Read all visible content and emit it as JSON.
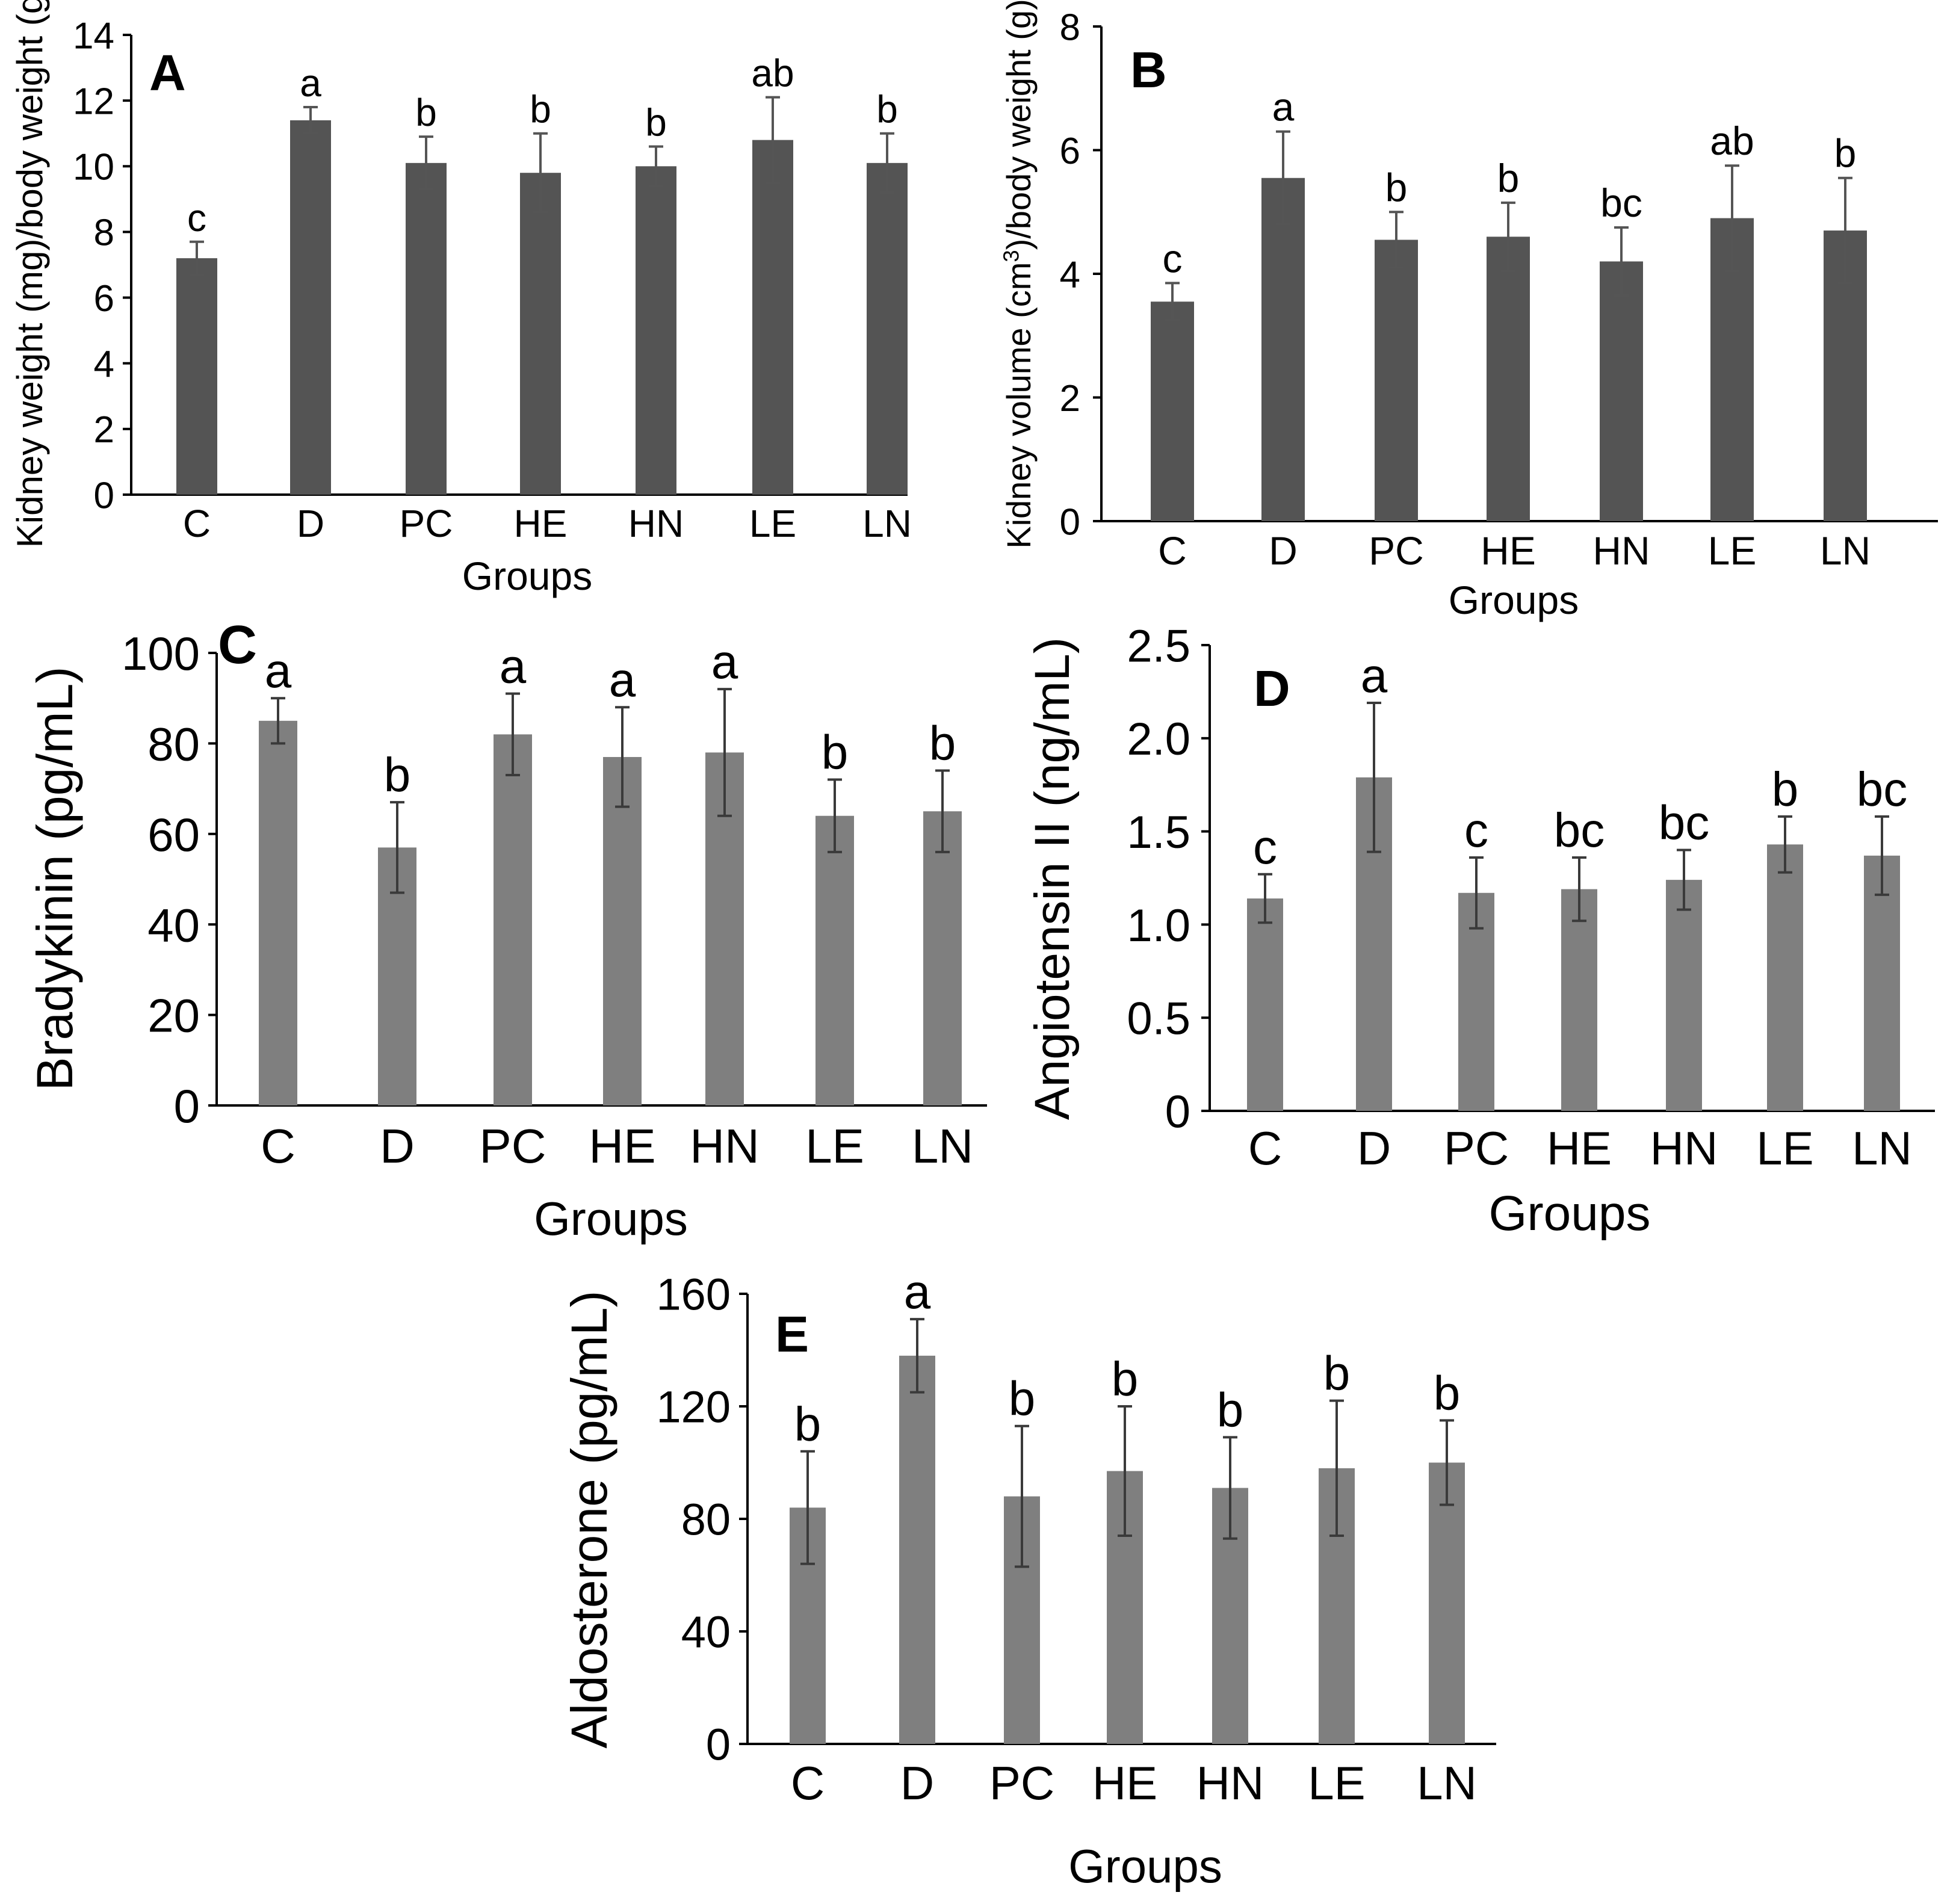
{
  "chart_data": [
    {
      "panel": "A",
      "type": "bar",
      "xlabel": "Groups",
      "ylabel": "Kidney weight (mg)/body weight (g)",
      "ylim": [
        0,
        14
      ],
      "yticks": [
        0,
        2,
        4,
        6,
        8,
        10,
        12,
        14
      ],
      "ytick_labels": [
        "0",
        "2",
        "4",
        "6",
        "8",
        "10",
        "12",
        "14"
      ],
      "categories": [
        "C",
        "D",
        "PC",
        "HE",
        "HN",
        "LE",
        "LN"
      ],
      "values": [
        7.2,
        11.4,
        10.1,
        9.8,
        10.0,
        10.8,
        10.1
      ],
      "errors": [
        0.5,
        0.4,
        0.8,
        1.2,
        0.6,
        1.3,
        0.9
      ],
      "letters": [
        "c",
        "a",
        "b",
        "b",
        "b",
        "ab",
        "b"
      ],
      "bar_color": "#545454"
    },
    {
      "panel": "B",
      "type": "bar",
      "xlabel": "Groups",
      "ylabel_parts": [
        "Kidney volume (cm",
        "3",
        ")/body weight (g)"
      ],
      "ylim": [
        0,
        8
      ],
      "yticks": [
        0,
        2,
        4,
        6,
        8
      ],
      "ytick_labels": [
        "0",
        "2",
        "4",
        "6",
        "8"
      ],
      "categories": [
        "C",
        "D",
        "PC",
        "HE",
        "HN",
        "LE",
        "LN"
      ],
      "values": [
        3.55,
        5.55,
        4.55,
        4.6,
        4.2,
        4.9,
        4.7
      ],
      "errors": [
        0.3,
        0.75,
        0.45,
        0.55,
        0.55,
        0.85,
        0.85
      ],
      "letters": [
        "c",
        "a",
        "b",
        "b",
        "bc",
        "ab",
        "b"
      ],
      "bar_color": "#545454"
    },
    {
      "panel": "C",
      "type": "bar",
      "xlabel": "Groups",
      "ylabel": "Bradykinin (pg/mL)",
      "ylim": [
        0,
        100
      ],
      "yticks": [
        0,
        20,
        40,
        60,
        80,
        100
      ],
      "ytick_labels": [
        "0",
        "20",
        "40",
        "60",
        "80",
        "100"
      ],
      "categories": [
        "C",
        "D",
        "PC",
        "HE",
        "HN",
        "LE",
        "LN"
      ],
      "values": [
        85,
        57,
        82,
        77,
        78,
        64,
        65
      ],
      "errors": [
        5,
        10,
        9,
        11,
        14,
        8,
        9
      ],
      "letters": [
        "a",
        "b",
        "a",
        "a",
        "a",
        "b",
        "b"
      ],
      "bar_color": "#7f7f7f"
    },
    {
      "panel": "D",
      "type": "bar",
      "xlabel": "Groups",
      "ylabel": "Angiotensin II (ng/mL)",
      "ylim": [
        0,
        2.5
      ],
      "yticks": [
        0,
        0.5,
        1.0,
        1.5,
        2.0,
        2.5
      ],
      "ytick_labels": [
        "0",
        "0.5",
        "1.0",
        "1.5",
        "2.0",
        "2.5"
      ],
      "categories": [
        "C",
        "D",
        "PC",
        "HE",
        "HN",
        "LE",
        "LN"
      ],
      "values": [
        1.14,
        1.79,
        1.17,
        1.19,
        1.24,
        1.43,
        1.37
      ],
      "errors": [
        0.13,
        0.4,
        0.19,
        0.17,
        0.16,
        0.15,
        0.21
      ],
      "letters": [
        "c",
        "a",
        "c",
        "bc",
        "bc",
        "b",
        "bc"
      ],
      "bar_color": "#7f7f7f"
    },
    {
      "panel": "E",
      "type": "bar",
      "xlabel": "Groups",
      "ylabel": "Aldosterone (pg/mL)",
      "ylim": [
        0,
        160
      ],
      "yticks": [
        0,
        40,
        80,
        120,
        160
      ],
      "ytick_labels": [
        "0",
        "40",
        "80",
        "120",
        "160"
      ],
      "categories": [
        "C",
        "D",
        "PC",
        "HE",
        "HN",
        "LE",
        "LN"
      ],
      "values": [
        84,
        138,
        88,
        97,
        91,
        98,
        100
      ],
      "errors": [
        20,
        13,
        25,
        23,
        18,
        24,
        15
      ],
      "letters": [
        "b",
        "a",
        "b",
        "b",
        "b",
        "b",
        "b"
      ],
      "bar_color": "#7f7f7f"
    }
  ]
}
